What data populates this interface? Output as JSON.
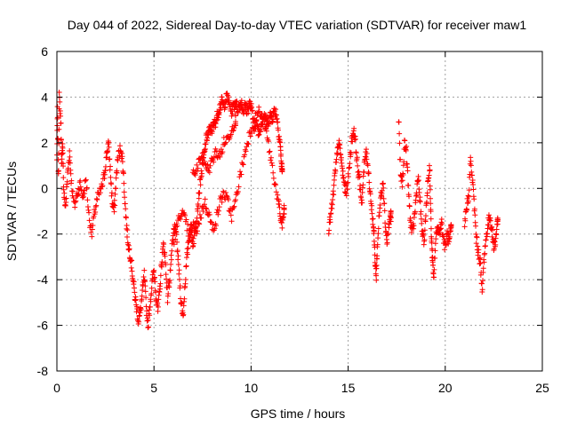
{
  "chart_data": {
    "type": "scatter",
    "title": "Day 044 of 2022, Sidereal Day-to-day VTEC variation (SDTVAR) for receiver maw1",
    "xlabel": "GPS time / hours",
    "ylabel": "SDTVAR / TECUs",
    "xlim": [
      0,
      25
    ],
    "ylim": [
      -8,
      6
    ],
    "xticks": [
      "0",
      "5",
      "10",
      "15",
      "20",
      "25"
    ],
    "yticks": [
      "-8",
      "-6",
      "-4",
      "-2",
      "0",
      "2",
      "4",
      "6"
    ],
    "grid": true,
    "marker": "+",
    "color": "#ff0000",
    "series": [
      {
        "name": "maw1",
        "segments": [
          [
            0.0,
            1.2
          ],
          [
            0.03,
            3.4
          ],
          [
            0.08,
            0.4
          ],
          [
            0.12,
            4.0
          ],
          [
            0.2,
            3.0
          ],
          [
            0.25,
            1.0
          ],
          [
            0.3,
            2.0
          ],
          [
            0.35,
            -0.2
          ],
          [
            0.45,
            -0.8
          ],
          [
            0.55,
            0.6
          ],
          [
            0.65,
            1.6
          ],
          [
            0.75,
            0.2
          ],
          [
            0.9,
            -0.8
          ],
          [
            1.05,
            -0.2
          ],
          [
            1.2,
            0.2
          ],
          [
            1.35,
            -0.4
          ],
          [
            1.5,
            0.4
          ],
          [
            1.65,
            -1.2
          ],
          [
            1.8,
            -2.0
          ],
          [
            1.95,
            -1.0
          ],
          [
            2.1,
            -0.4
          ],
          [
            2.3,
            0.0
          ],
          [
            2.45,
            0.6
          ],
          [
            2.55,
            1.4
          ],
          [
            2.65,
            2.0
          ],
          [
            2.75,
            0.8
          ],
          [
            2.85,
            -0.6
          ],
          [
            2.95,
            -1.0
          ],
          [
            3.05,
            0.4
          ],
          [
            3.15,
            1.4
          ],
          [
            3.3,
            1.8
          ],
          [
            3.4,
            1.0
          ],
          [
            3.5,
            -0.5
          ],
          [
            3.6,
            -1.8
          ],
          [
            3.7,
            -2.6
          ],
          [
            3.8,
            -3.0
          ],
          [
            3.9,
            -3.8
          ],
          [
            4.0,
            -4.6
          ],
          [
            4.1,
            -5.2
          ],
          [
            4.2,
            -5.8
          ],
          [
            4.3,
            -5.4
          ],
          [
            4.4,
            -4.6
          ],
          [
            4.5,
            -3.8
          ],
          [
            4.6,
            -5.2
          ],
          [
            4.7,
            -6.0
          ],
          [
            4.8,
            -5.0
          ],
          [
            4.9,
            -4.2
          ],
          [
            5.0,
            -3.6
          ],
          [
            5.1,
            -4.6
          ],
          [
            5.2,
            -5.4
          ],
          [
            5.3,
            -4.4
          ],
          [
            5.4,
            -3.2
          ],
          [
            5.5,
            -2.4
          ],
          [
            5.6,
            -3.4
          ],
          [
            5.7,
            -4.8
          ],
          [
            5.8,
            -4.0
          ],
          [
            5.9,
            -3.0
          ],
          [
            6.0,
            -2.0
          ],
          [
            6.1,
            -1.6
          ],
          [
            6.2,
            -2.6
          ],
          [
            6.3,
            -3.8
          ],
          [
            6.4,
            -5.0
          ],
          [
            6.5,
            -5.6
          ],
          [
            6.6,
            -4.2
          ],
          [
            6.7,
            -3.0
          ],
          [
            6.8,
            -2.2
          ],
          [
            6.9,
            -1.8
          ],
          [
            7.0,
            -2.4
          ],
          [
            7.1,
            -2.0
          ],
          [
            7.2,
            -1.2
          ],
          [
            7.3,
            -0.4
          ],
          [
            7.4,
            0.4
          ],
          [
            7.5,
            1.0
          ],
          [
            7.6,
            1.6
          ],
          [
            7.7,
            2.2
          ],
          [
            7.8,
            2.4
          ],
          [
            7.9,
            2.6
          ],
          [
            8.0,
            2.6
          ],
          [
            8.1,
            2.8
          ],
          [
            8.2,
            3.0
          ],
          [
            8.3,
            3.3
          ],
          [
            8.4,
            3.6
          ],
          [
            8.5,
            3.8
          ],
          [
            8.6,
            3.6
          ],
          [
            8.7,
            3.9
          ],
          [
            8.8,
            4.0
          ],
          [
            8.9,
            3.6
          ],
          [
            9.0,
            3.4
          ],
          [
            9.1,
            3.6
          ],
          [
            9.2,
            3.8
          ],
          [
            9.3,
            3.5
          ],
          [
            9.4,
            3.6
          ],
          [
            9.5,
            3.8
          ],
          [
            9.6,
            3.4
          ],
          [
            9.7,
            3.6
          ],
          [
            9.8,
            3.4
          ],
          [
            9.9,
            3.7
          ],
          [
            10.0,
            3.6
          ],
          [
            10.1,
            3.0
          ],
          [
            10.2,
            2.6
          ],
          [
            10.3,
            2.9
          ],
          [
            10.4,
            2.4
          ],
          [
            10.5,
            2.8
          ],
          [
            10.6,
            3.1
          ],
          [
            10.7,
            3.2
          ],
          [
            10.8,
            2.8
          ],
          [
            10.9,
            3.0
          ],
          [
            11.0,
            3.2
          ],
          [
            11.1,
            3.1
          ],
          [
            11.2,
            3.4
          ],
          [
            11.3,
            3.3
          ],
          [
            11.4,
            2.6
          ],
          [
            11.5,
            2.0
          ],
          [
            11.55,
            1.2
          ],
          [
            11.6,
            0.8
          ]
        ],
        "segments_b": [
          [
            6.0,
            -2.4
          ],
          [
            6.2,
            -1.6
          ],
          [
            6.4,
            -1.0
          ],
          [
            6.6,
            -1.4
          ],
          [
            6.8,
            -2.0
          ],
          [
            7.0,
            -1.6
          ],
          [
            7.2,
            -1.8
          ],
          [
            7.4,
            -1.2
          ],
          [
            7.6,
            -0.6
          ],
          [
            7.8,
            -1.0
          ],
          [
            8.0,
            -1.8
          ],
          [
            8.2,
            -1.4
          ],
          [
            8.4,
            -0.6
          ],
          [
            8.6,
            -0.2
          ],
          [
            8.8,
            -0.6
          ],
          [
            9.0,
            -1.2
          ],
          [
            9.2,
            -0.6
          ],
          [
            9.4,
            0.4
          ],
          [
            9.6,
            1.2
          ],
          [
            9.8,
            2.0
          ],
          [
            10.0,
            2.6
          ],
          [
            10.2,
            3.0
          ],
          [
            10.4,
            3.4
          ],
          [
            10.6,
            3.0
          ],
          [
            10.8,
            2.4
          ],
          [
            11.0,
            1.4
          ],
          [
            11.2,
            0.4
          ],
          [
            11.4,
            -0.6
          ],
          [
            11.5,
            -1.2
          ],
          [
            11.6,
            -1.6
          ],
          [
            11.7,
            -1.0
          ]
        ],
        "segments_c": [
          [
            7.0,
            0.6
          ],
          [
            7.2,
            0.8
          ],
          [
            7.4,
            1.4
          ],
          [
            7.6,
            1.2
          ],
          [
            7.8,
            0.8
          ],
          [
            8.0,
            1.2
          ],
          [
            8.2,
            1.6
          ],
          [
            8.4,
            1.4
          ],
          [
            8.6,
            2.0
          ],
          [
            8.8,
            2.2
          ],
          [
            9.0,
            2.6
          ],
          [
            9.2,
            3.0
          ]
        ],
        "segments_d": [
          [
            14.0,
            -1.8
          ],
          [
            14.1,
            -1.2
          ],
          [
            14.2,
            -0.6
          ],
          [
            14.3,
            0.4
          ],
          [
            14.4,
            1.2
          ],
          [
            14.5,
            2.0
          ],
          [
            14.6,
            1.6
          ],
          [
            14.7,
            0.8
          ],
          [
            14.8,
            0.2
          ],
          [
            14.9,
            -0.2
          ],
          [
            15.0,
            0.4
          ],
          [
            15.1,
            1.4
          ],
          [
            15.2,
            2.2
          ],
          [
            15.3,
            2.6
          ],
          [
            15.4,
            1.8
          ],
          [
            15.5,
            0.8
          ],
          [
            15.6,
            0.2
          ],
          [
            15.7,
            -0.6
          ],
          [
            15.8,
            0.6
          ],
          [
            15.9,
            1.6
          ],
          [
            16.0,
            1.2
          ],
          [
            16.1,
            0.2
          ],
          [
            16.2,
            -0.8
          ],
          [
            16.3,
            -1.6
          ],
          [
            16.35,
            -2.4
          ],
          [
            16.4,
            -3.4
          ],
          [
            16.45,
            -3.8
          ],
          [
            16.5,
            -2.6
          ],
          [
            16.6,
            -1.2
          ],
          [
            16.7,
            -0.2
          ],
          [
            16.8,
            0.4
          ],
          [
            16.9,
            -1.4
          ],
          [
            17.0,
            -2.4
          ],
          [
            17.1,
            -1.6
          ],
          [
            17.2,
            -1.2
          ]
        ],
        "segments_e": [
          [
            17.6,
            3.1
          ],
          [
            17.7,
            0.6
          ],
          [
            17.8,
            0.2
          ],
          [
            17.9,
            2.0
          ],
          [
            18.0,
            1.6
          ],
          [
            18.1,
            0.0
          ],
          [
            18.2,
            -1.4
          ],
          [
            18.3,
            -2.0
          ],
          [
            18.4,
            -1.4
          ],
          [
            18.5,
            -0.4
          ],
          [
            18.6,
            0.6
          ],
          [
            18.7,
            -0.6
          ],
          [
            18.8,
            -1.8
          ],
          [
            18.9,
            -2.4
          ],
          [
            19.0,
            -1.2
          ],
          [
            19.1,
            0.2
          ],
          [
            19.2,
            1.0
          ],
          [
            19.25,
            -1.0
          ],
          [
            19.3,
            -2.4
          ],
          [
            19.35,
            -3.2
          ],
          [
            19.4,
            -4.0
          ],
          [
            19.5,
            -2.4
          ],
          [
            19.6,
            -1.6
          ],
          [
            19.7,
            -2.0
          ],
          [
            19.8,
            -1.4
          ],
          [
            19.9,
            -2.2
          ],
          [
            20.0,
            -2.6
          ],
          [
            20.1,
            -2.0
          ],
          [
            20.2,
            -2.4
          ],
          [
            20.3,
            -1.8
          ]
        ],
        "segments_f": [
          [
            21.0,
            -1.6
          ],
          [
            21.1,
            -0.8
          ],
          [
            21.2,
            -0.4
          ],
          [
            21.3,
            1.2
          ],
          [
            21.4,
            0.4
          ],
          [
            21.5,
            -0.8
          ],
          [
            21.6,
            -2.2
          ],
          [
            21.7,
            -2.8
          ],
          [
            21.8,
            -3.2
          ],
          [
            21.9,
            -4.6
          ],
          [
            22.0,
            -3.0
          ],
          [
            22.1,
            -2.2
          ],
          [
            22.2,
            -1.6
          ],
          [
            22.3,
            -1.2
          ],
          [
            22.4,
            -1.8
          ],
          [
            22.5,
            -2.6
          ],
          [
            22.6,
            -2.2
          ],
          [
            22.7,
            -1.4
          ]
        ]
      }
    ]
  }
}
